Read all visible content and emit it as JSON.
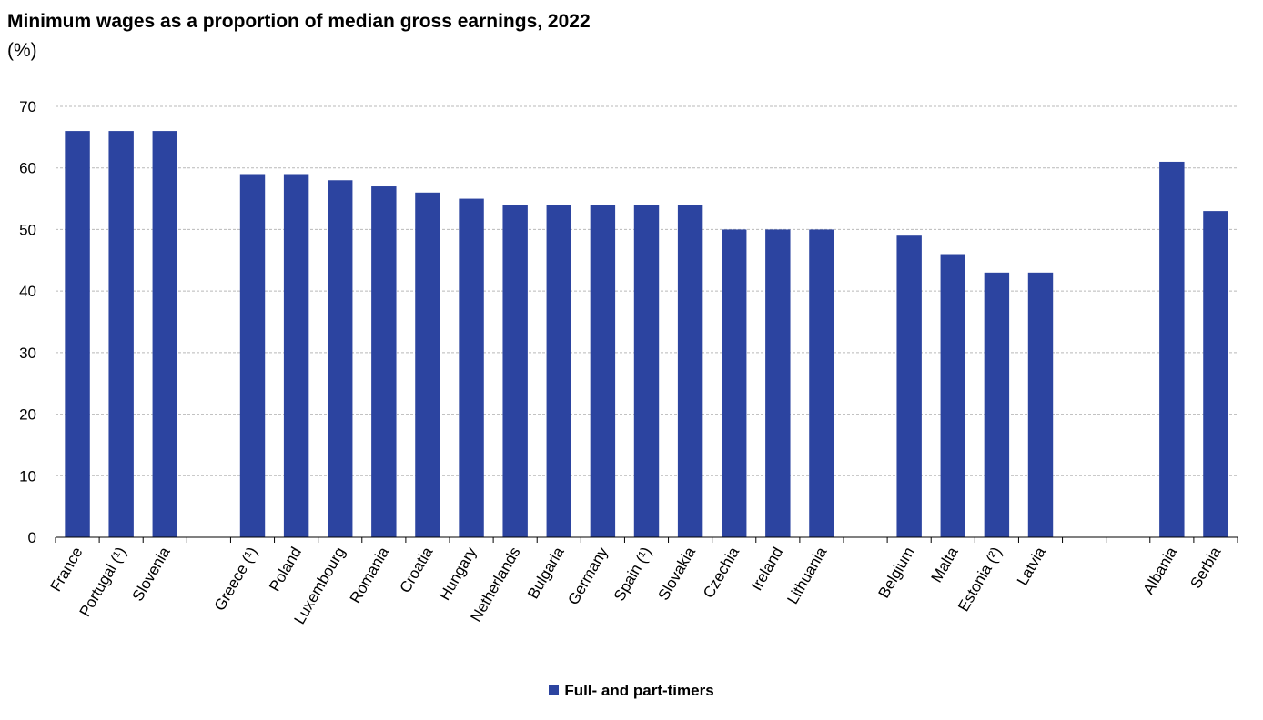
{
  "chart_data": {
    "type": "bar",
    "title": "Minimum wages as a proportion of median gross earnings, 2022",
    "subtitle": "(%)",
    "categories": [
      "France",
      "Portugal (¹)",
      "Slovenia",
      "",
      "Greece (¹)",
      "Poland",
      "Luxembourg",
      "Romania",
      "Croatia",
      "Hungary",
      "Netherlands",
      "Bulgaria",
      "Germany",
      "Spain (¹)",
      "Slovakia",
      "Czechia",
      "Ireland",
      "Lithuania",
      "",
      "Belgium",
      "Malta",
      "Estonia (²)",
      "Latvia",
      "",
      "",
      "Albania",
      "Serbia"
    ],
    "series": [
      {
        "name": "Full- and part-timers",
        "values": [
          66,
          66,
          66,
          null,
          59,
          59,
          58,
          57,
          56,
          55,
          54,
          54,
          54,
          54,
          54,
          50,
          50,
          50,
          null,
          49,
          46,
          43,
          43,
          null,
          null,
          61,
          53
        ]
      }
    ],
    "ylim": [
      0,
      70
    ],
    "yticks": [
      0,
      10,
      20,
      30,
      40,
      50,
      60,
      70
    ],
    "grid": true,
    "legend_position": "bottom",
    "colors": {
      "bar": "#2c44a0",
      "grid": "#b9b9b9",
      "axis": "#000000",
      "text": "#000000"
    }
  }
}
